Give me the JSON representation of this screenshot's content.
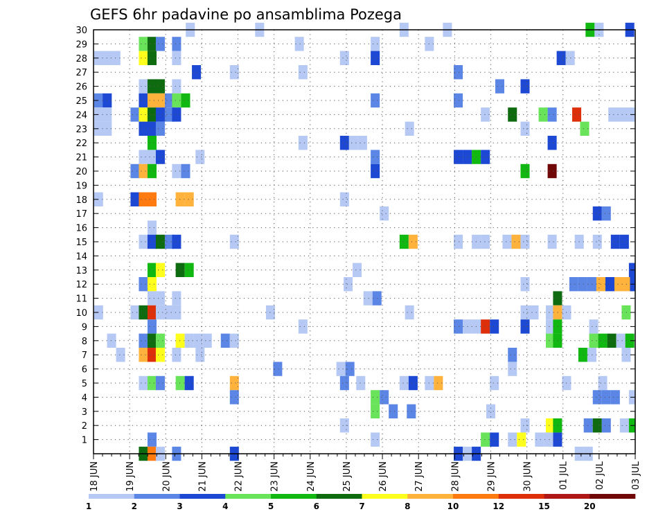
{
  "chart_data": {
    "type": "heatmap",
    "title": "GEFS 6hr padavine po ansamblima Pozega",
    "xlabel": "",
    "ylabel": "",
    "x_tick_labels": [
      "18 JUN",
      "19 JUN",
      "20 JUN",
      "21 JUN",
      "22 JUN",
      "23 JUN",
      "24 JUN",
      "25 JUN",
      "26 JUN",
      "27 JUN",
      "28 JUN",
      "29 JUN",
      "30 JUN",
      "01 JUL",
      "02 JUL",
      "03 JUL"
    ],
    "y_tick_labels": [
      "1",
      "2",
      "3",
      "4",
      "5",
      "6",
      "7",
      "8",
      "9",
      "10",
      "11",
      "12",
      "13",
      "14",
      "15",
      "16",
      "17",
      "18",
      "19",
      "20",
      "21",
      "22",
      "23",
      "24",
      "25",
      "26",
      "27",
      "28",
      "29",
      "30"
    ],
    "xlim": [
      0,
      15
    ],
    "ylim": [
      0,
      30
    ],
    "grid": true,
    "colorbar": {
      "placement": "bottom",
      "colors": [
        "#b6c9f5",
        "#5b86e6",
        "#1c48d4",
        "#69e35a",
        "#12b812",
        "#0f6b0f",
        "#ffff1e",
        "#ffb23c",
        "#ff7a0f",
        "#dd2f0a",
        "#b01818",
        "#700808"
      ],
      "labels": [
        "1",
        "2",
        "3",
        "4",
        "5",
        "6",
        "7",
        "8",
        "10",
        "12",
        "15",
        "20"
      ]
    },
    "cells": [
      [
        2.68,
        30,
        1
      ],
      [
        4.6,
        30,
        1
      ],
      [
        8.6,
        30,
        1
      ],
      [
        9.8,
        30,
        1
      ],
      [
        13.75,
        30,
        5
      ],
      [
        14,
        30,
        1
      ],
      [
        14.85,
        30,
        3
      ],
      [
        1.38,
        29,
        4
      ],
      [
        1.62,
        29,
        6
      ],
      [
        1.85,
        29,
        2
      ],
      [
        2.3,
        29,
        2
      ],
      [
        5.7,
        29,
        1
      ],
      [
        7.8,
        29,
        1
      ],
      [
        9.3,
        29,
        1
      ],
      [
        0.14,
        28,
        1
      ],
      [
        0.38,
        28,
        1
      ],
      [
        0.62,
        28,
        1
      ],
      [
        1.38,
        28,
        7
      ],
      [
        1.62,
        28,
        6
      ],
      [
        2.3,
        28,
        1
      ],
      [
        6.95,
        28,
        1
      ],
      [
        7.8,
        28,
        3
      ],
      [
        12.95,
        28,
        3
      ],
      [
        13.2,
        28,
        1
      ],
      [
        2.85,
        27,
        3
      ],
      [
        3.9,
        27,
        1
      ],
      [
        5.8,
        27,
        1
      ],
      [
        10.1,
        27,
        2
      ],
      [
        1.38,
        26,
        1
      ],
      [
        1.62,
        26,
        6
      ],
      [
        1.85,
        26,
        6
      ],
      [
        2.3,
        26,
        1
      ],
      [
        11.25,
        26,
        2
      ],
      [
        11.95,
        26,
        3
      ],
      [
        0.14,
        25,
        2
      ],
      [
        0.38,
        25,
        3
      ],
      [
        1.38,
        25,
        3
      ],
      [
        1.62,
        25,
        8
      ],
      [
        1.85,
        25,
        8
      ],
      [
        2.1,
        25,
        2
      ],
      [
        2.3,
        25,
        4
      ],
      [
        2.55,
        25,
        5
      ],
      [
        7.8,
        25,
        2
      ],
      [
        10.1,
        25,
        2
      ],
      [
        0.14,
        24,
        1
      ],
      [
        0.38,
        24,
        1
      ],
      [
        1.15,
        24,
        2
      ],
      [
        1.38,
        24,
        7
      ],
      [
        1.62,
        24,
        6
      ],
      [
        1.85,
        24,
        3
      ],
      [
        2.1,
        24,
        2
      ],
      [
        2.3,
        24,
        3
      ],
      [
        10.85,
        24,
        1
      ],
      [
        11.6,
        24,
        6
      ],
      [
        12.45,
        24,
        4
      ],
      [
        12.7,
        24,
        2
      ],
      [
        13.38,
        24,
        10
      ],
      [
        14.38,
        24,
        1
      ],
      [
        14.62,
        24,
        1
      ],
      [
        14.86,
        24,
        1
      ],
      [
        0.14,
        23,
        1
      ],
      [
        0.38,
        23,
        1
      ],
      [
        1.38,
        23,
        3
      ],
      [
        1.62,
        23,
        3
      ],
      [
        1.85,
        23,
        2
      ],
      [
        8.75,
        23,
        1
      ],
      [
        11.95,
        23,
        1
      ],
      [
        13.6,
        23,
        4
      ],
      [
        1.62,
        22,
        5
      ],
      [
        5.8,
        22,
        1
      ],
      [
        6.95,
        22,
        3
      ],
      [
        7.2,
        22,
        1
      ],
      [
        7.45,
        22,
        1
      ],
      [
        12.7,
        22,
        3
      ],
      [
        1.38,
        21,
        1
      ],
      [
        1.62,
        21,
        1
      ],
      [
        1.85,
        21,
        3
      ],
      [
        2.95,
        21,
        1
      ],
      [
        7.8,
        21,
        2
      ],
      [
        10.1,
        21,
        3
      ],
      [
        10.35,
        21,
        3
      ],
      [
        10.6,
        21,
        5
      ],
      [
        10.85,
        21,
        3
      ],
      [
        1.15,
        20,
        2
      ],
      [
        1.38,
        20,
        8
      ],
      [
        1.62,
        20,
        5
      ],
      [
        2.3,
        20,
        1
      ],
      [
        2.55,
        20,
        2
      ],
      [
        7.8,
        20,
        3
      ],
      [
        11.95,
        20,
        5
      ],
      [
        12.7,
        20,
        12
      ],
      [
        0.14,
        18,
        1
      ],
      [
        1.15,
        18,
        3
      ],
      [
        1.38,
        18,
        9
      ],
      [
        1.62,
        18,
        9
      ],
      [
        2.4,
        18,
        8
      ],
      [
        2.65,
        18,
        8
      ],
      [
        6.95,
        18,
        1
      ],
      [
        8.05,
        17,
        1
      ],
      [
        13.95,
        17,
        3
      ],
      [
        14.2,
        17,
        2
      ],
      [
        1.62,
        16,
        1
      ],
      [
        1.38,
        15,
        1
      ],
      [
        1.62,
        15,
        3
      ],
      [
        1.85,
        15,
        6
      ],
      [
        2.1,
        15,
        2
      ],
      [
        2.3,
        15,
        3
      ],
      [
        3.9,
        15,
        1
      ],
      [
        8.6,
        15,
        5
      ],
      [
        8.85,
        15,
        8
      ],
      [
        10.1,
        15,
        1
      ],
      [
        10.6,
        15,
        1
      ],
      [
        10.85,
        15,
        1
      ],
      [
        11.45,
        15,
        1
      ],
      [
        11.7,
        15,
        8
      ],
      [
        11.95,
        15,
        1
      ],
      [
        12.7,
        15,
        1
      ],
      [
        13.45,
        15,
        1
      ],
      [
        13.95,
        15,
        1
      ],
      [
        14.45,
        15,
        3
      ],
      [
        14.7,
        15,
        3
      ],
      [
        1.62,
        13,
        5
      ],
      [
        1.85,
        13,
        7
      ],
      [
        2.4,
        13,
        6
      ],
      [
        2.65,
        13,
        5
      ],
      [
        7.3,
        13,
        1
      ],
      [
        14.95,
        13,
        3
      ],
      [
        1.38,
        12,
        2
      ],
      [
        1.62,
        12,
        7
      ],
      [
        7.05,
        12,
        1
      ],
      [
        11.95,
        12,
        1
      ],
      [
        13.3,
        12,
        2
      ],
      [
        13.55,
        12,
        2
      ],
      [
        13.8,
        12,
        2
      ],
      [
        14.05,
        12,
        8
      ],
      [
        14.3,
        12,
        3
      ],
      [
        14.55,
        12,
        8
      ],
      [
        14.8,
        12,
        8
      ],
      [
        14.98,
        12,
        3
      ],
      [
        1.62,
        11,
        1
      ],
      [
        1.85,
        11,
        1
      ],
      [
        2.3,
        11,
        1
      ],
      [
        7.6,
        11,
        1
      ],
      [
        7.85,
        11,
        2
      ],
      [
        12.85,
        11,
        6
      ],
      [
        0.14,
        10,
        1
      ],
      [
        1.15,
        10,
        1
      ],
      [
        1.38,
        10,
        6
      ],
      [
        1.62,
        10,
        10
      ],
      [
        1.85,
        10,
        1
      ],
      [
        2.1,
        10,
        1
      ],
      [
        2.3,
        10,
        1
      ],
      [
        4.9,
        10,
        1
      ],
      [
        8.75,
        10,
        1
      ],
      [
        11.95,
        10,
        1
      ],
      [
        12.2,
        10,
        1
      ],
      [
        12.65,
        10,
        1
      ],
      [
        12.85,
        10,
        8
      ],
      [
        13.1,
        10,
        1
      ],
      [
        14.75,
        10,
        4
      ],
      [
        1.62,
        9,
        2
      ],
      [
        5.8,
        9,
        1
      ],
      [
        10.1,
        9,
        2
      ],
      [
        10.35,
        9,
        1
      ],
      [
        10.6,
        9,
        1
      ],
      [
        10.85,
        9,
        10
      ],
      [
        11.1,
        9,
        3
      ],
      [
        11.95,
        9,
        3
      ],
      [
        12.65,
        9,
        1
      ],
      [
        12.85,
        9,
        5
      ],
      [
        13.85,
        9,
        1
      ],
      [
        0.5,
        8,
        1
      ],
      [
        1.38,
        8,
        2
      ],
      [
        1.62,
        8,
        6
      ],
      [
        1.85,
        8,
        4
      ],
      [
        2.4,
        8,
        7
      ],
      [
        2.65,
        8,
        1
      ],
      [
        2.9,
        8,
        1
      ],
      [
        3.15,
        8,
        1
      ],
      [
        3.65,
        8,
        2
      ],
      [
        3.9,
        8,
        1
      ],
      [
        12.65,
        8,
        4
      ],
      [
        12.85,
        8,
        5
      ],
      [
        13.85,
        8,
        4
      ],
      [
        14.1,
        8,
        5
      ],
      [
        14.35,
        8,
        6
      ],
      [
        14.6,
        8,
        1
      ],
      [
        14.85,
        8,
        5
      ],
      [
        0.75,
        7,
        1
      ],
      [
        1.38,
        7,
        8
      ],
      [
        1.62,
        7,
        10
      ],
      [
        1.85,
        7,
        7
      ],
      [
        2.3,
        7,
        1
      ],
      [
        2.95,
        7,
        1
      ],
      [
        11.6,
        7,
        2
      ],
      [
        13.55,
        7,
        5
      ],
      [
        13.8,
        7,
        1
      ],
      [
        14.75,
        7,
        1
      ],
      [
        5.1,
        6,
        2
      ],
      [
        6.85,
        6,
        1
      ],
      [
        7.1,
        6,
        2
      ],
      [
        11.6,
        6,
        1
      ],
      [
        1.38,
        5,
        1
      ],
      [
        1.62,
        5,
        4
      ],
      [
        1.85,
        5,
        2
      ],
      [
        2.4,
        5,
        4
      ],
      [
        2.65,
        5,
        3
      ],
      [
        3.9,
        5,
        8
      ],
      [
        6.95,
        5,
        2
      ],
      [
        7.4,
        5,
        1
      ],
      [
        8.6,
        5,
        1
      ],
      [
        8.85,
        5,
        3
      ],
      [
        9.3,
        5,
        1
      ],
      [
        9.55,
        5,
        8
      ],
      [
        11.1,
        5,
        1
      ],
      [
        13.1,
        5,
        1
      ],
      [
        14.1,
        5,
        1
      ],
      [
        3.9,
        4,
        2
      ],
      [
        7.8,
        4,
        4
      ],
      [
        8.05,
        4,
        2
      ],
      [
        13.95,
        4,
        2
      ],
      [
        14.2,
        4,
        2
      ],
      [
        14.45,
        4,
        2
      ],
      [
        14.95,
        4,
        1
      ],
      [
        7.8,
        3,
        4
      ],
      [
        8.3,
        3,
        2
      ],
      [
        8.8,
        3,
        2
      ],
      [
        11.0,
        3,
        1
      ],
      [
        6.95,
        2,
        1
      ],
      [
        11.95,
        2,
        1
      ],
      [
        12.65,
        2,
        7
      ],
      [
        12.85,
        2,
        5
      ],
      [
        13.7,
        2,
        2
      ],
      [
        13.95,
        2,
        6
      ],
      [
        14.2,
        2,
        2
      ],
      [
        14.7,
        2,
        1
      ],
      [
        14.95,
        2,
        5
      ],
      [
        1.62,
        1,
        2
      ],
      [
        7.8,
        1,
        1
      ],
      [
        10.85,
        1,
        4
      ],
      [
        11.1,
        1,
        3
      ],
      [
        11.6,
        1,
        1
      ],
      [
        11.85,
        1,
        7
      ],
      [
        12.35,
        1,
        1
      ],
      [
        12.85,
        1,
        3
      ],
      [
        12.6,
        1,
        1
      ],
      [
        1.38,
        0,
        6
      ],
      [
        1.62,
        0,
        9
      ],
      [
        1.85,
        0,
        1
      ],
      [
        2.3,
        0,
        2
      ],
      [
        3.9,
        0,
        3
      ],
      [
        10.1,
        0,
        3
      ],
      [
        10.35,
        0,
        1
      ],
      [
        10.6,
        0,
        3
      ],
      [
        13.45,
        0,
        1
      ],
      [
        13.7,
        0,
        1
      ]
    ]
  }
}
